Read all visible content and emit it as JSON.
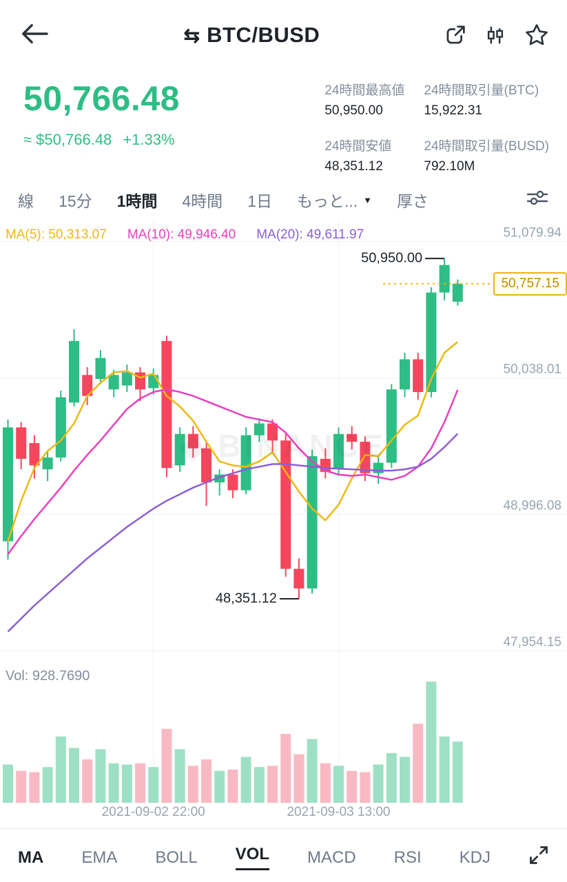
{
  "header": {
    "title": "BTC/BUSD",
    "swap_glyph": "⇆"
  },
  "price_panel": {
    "last_price": "50,766.48",
    "approx": "≈ $50,766.48",
    "change": "+1.33%",
    "stats": [
      {
        "label": "24時間最高値",
        "value": "50,950.00"
      },
      {
        "label": "24時間取引量(BTC)",
        "value": "15,922.31"
      },
      {
        "label": "24時間安値",
        "value": "48,351.12"
      },
      {
        "label": "24時間取引量(BUSD)",
        "value": "792.10M"
      }
    ]
  },
  "timeframe_bar": {
    "caret": "▼",
    "items": [
      {
        "label": "線",
        "active": false
      },
      {
        "label": "15分",
        "active": false
      },
      {
        "label": "1時間",
        "active": true
      },
      {
        "label": "4時間",
        "active": false
      },
      {
        "label": "1日",
        "active": false
      },
      {
        "label": "もっと...",
        "active": false
      },
      {
        "label": "厚さ",
        "active": false
      }
    ]
  },
  "legend": {
    "ma5": "MA(5): 50,313.07",
    "ma10": "MA(10): 49,946.40",
    "ma20": "MA(20): 49,611.97"
  },
  "chart_data": {
    "type": "candlestick+volume",
    "title": "BTC/BUSD 1時間",
    "watermark": "BINANCE",
    "y_ticks": [
      "51,079.94",
      "50,038.01",
      "48,996.08",
      "47,954.15"
    ],
    "y_tick_values": [
      51079.94,
      50038.01,
      48996.08,
      47954.15
    ],
    "price_range": [
      47846,
      51240
    ],
    "x_labels": [
      {
        "text": "2021-09-02 22:00",
        "index": 11
      },
      {
        "text": "2021-09-03 13:00",
        "index": 25
      }
    ],
    "current_price": {
      "value": 50757.15,
      "label": "50,757.15"
    },
    "annotations": {
      "high": {
        "index": 33,
        "price": 50950.0,
        "label": "50,950.00"
      },
      "low": {
        "index": 22,
        "price": 48351.12,
        "label": "48,351.12"
      }
    },
    "vol_label": "Vol: 928.7690",
    "vol_max": 1000,
    "candles": [
      [
        48790,
        49720,
        48650,
        49660
      ],
      [
        49660,
        49700,
        49340,
        49420
      ],
      [
        49540,
        49600,
        49270,
        49370
      ],
      [
        49340,
        49470,
        49250,
        49430
      ],
      [
        49430,
        49940,
        49400,
        49890
      ],
      [
        49850,
        50410,
        49820,
        50320
      ],
      [
        50060,
        50120,
        49830,
        49900
      ],
      [
        50030,
        50250,
        49990,
        50190
      ],
      [
        49950,
        50100,
        49890,
        50060
      ],
      [
        49980,
        50140,
        49930,
        50080
      ],
      [
        50080,
        50120,
        49860,
        49950
      ],
      [
        49960,
        50110,
        49910,
        50060
      ],
      [
        50320,
        50360,
        49280,
        49350
      ],
      [
        49370,
        49660,
        49320,
        49610
      ],
      [
        49610,
        49670,
        49430,
        49500
      ],
      [
        49500,
        49540,
        49060,
        49240
      ],
      [
        49240,
        49340,
        49140,
        49300
      ],
      [
        49300,
        49340,
        49120,
        49180
      ],
      [
        49180,
        49660,
        49150,
        49600
      ],
      [
        49600,
        49730,
        49550,
        49690
      ],
      [
        49690,
        49720,
        49470,
        49560
      ],
      [
        49560,
        49610,
        48520,
        48580
      ],
      [
        48580,
        48660,
        48351.12,
        48430
      ],
      [
        48430,
        49490,
        48390,
        49440
      ],
      [
        49420,
        49500,
        49270,
        49320
      ],
      [
        49340,
        49660,
        49290,
        49610
      ],
      [
        49610,
        49670,
        49490,
        49550
      ],
      [
        49550,
        49590,
        49250,
        49310
      ],
      [
        49310,
        49440,
        49230,
        49390
      ],
      [
        49390,
        49990,
        49350,
        49950
      ],
      [
        49950,
        50230,
        49890,
        50180
      ],
      [
        50180,
        50230,
        49870,
        49930
      ],
      [
        49930,
        50730,
        49890,
        50690
      ],
      [
        50690,
        50950,
        50630,
        50900
      ],
      [
        50620,
        50790,
        50590,
        50757.15
      ]
    ],
    "volumes": [
      300,
      250,
      240,
      280,
      520,
      430,
      340,
      420,
      310,
      300,
      310,
      280,
      580,
      420,
      290,
      340,
      250,
      260,
      360,
      280,
      290,
      540,
      380,
      500,
      310,
      290,
      250,
      240,
      300,
      390,
      360,
      620,
      950,
      520,
      480
    ],
    "ma5": [
      48790,
      49100,
      49350,
      49480,
      49560,
      49690,
      49900,
      50000,
      50080,
      50090,
      50040,
      50070,
      49900,
      49820,
      49710,
      49550,
      49400,
      49370,
      49360,
      49400,
      49470,
      49320,
      49170,
      49040,
      48950,
      49070,
      49270,
      49450,
      49440,
      49560,
      49680,
      49750,
      50030,
      50230,
      50313.07
    ],
    "ma10": [
      48690,
      48830,
      48960,
      49080,
      49200,
      49330,
      49450,
      49560,
      49680,
      49800,
      49880,
      49930,
      49950,
      49930,
      49900,
      49860,
      49820,
      49780,
      49740,
      49720,
      49700,
      49620,
      49500,
      49400,
      49330,
      49300,
      49290,
      49300,
      49280,
      49260,
      49290,
      49360,
      49500,
      49700,
      49946.4
    ],
    "ma20": [
      48100,
      48200,
      48300,
      48390,
      48480,
      48570,
      48660,
      48740,
      48820,
      48900,
      48970,
      49040,
      49100,
      49150,
      49200,
      49240,
      49280,
      49310,
      49340,
      49360,
      49380,
      49380,
      49370,
      49360,
      49350,
      49345,
      49340,
      49335,
      49330,
      49330,
      49340,
      49360,
      49420,
      49510,
      49611.97
    ]
  },
  "indicator_bar": {
    "items": [
      {
        "label": "MA",
        "active": true
      },
      {
        "label": "EMA",
        "active": false
      },
      {
        "label": "BOLL",
        "active": false
      },
      {
        "label": "VOL",
        "active": true
      },
      {
        "label": "MACD",
        "active": false
      },
      {
        "label": "RSI",
        "active": false
      },
      {
        "label": "KDJ",
        "active": false
      }
    ]
  },
  "colors": {
    "up": "#2EBD85",
    "down": "#F6465D",
    "up_vol": "#9EE0C6",
    "down_vol": "#F9B9C3",
    "ma5": "#EDB90F",
    "ma10": "#E93FC0",
    "ma20": "#8A5FD6",
    "accent": "#F0B90B",
    "grid": "#F0F1F2",
    "axis_text": "#9AA4B0",
    "price_green": "#2EBD85",
    "text_dark": "#1E2329",
    "text_gray": "#707A8A"
  }
}
